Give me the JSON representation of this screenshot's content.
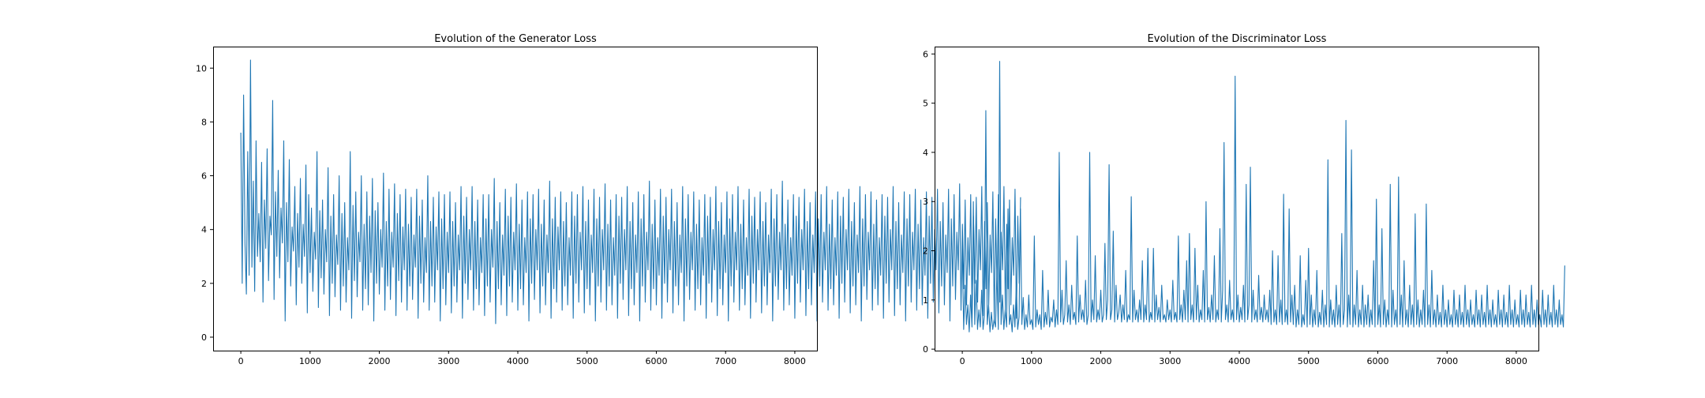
{
  "chart_data": [
    {
      "type": "line",
      "title": "Evolution of the Generator Loss",
      "xlabel": "",
      "ylabel": "",
      "xlim": [
        -400,
        8320
      ],
      "ylim": [
        -0.5,
        10.8
      ],
      "x_ticks": [
        0,
        1000,
        2000,
        3000,
        4000,
        5000,
        6000,
        7000,
        8000
      ],
      "x_tick_labels": [
        "0",
        "1000",
        "2000",
        "3000",
        "4000",
        "5000",
        "6000",
        "7000",
        "8000"
      ],
      "y_ticks": [
        0,
        2,
        4,
        6,
        8,
        10
      ],
      "y_tick_labels": [
        "0",
        "2",
        "4",
        "6",
        "8",
        "10"
      ],
      "grid": false,
      "legend": "none",
      "color": "#1f77b4",
      "series": [
        {
          "x_start": 0,
          "x_end": 7920,
          "step": 20,
          "values": [
            7.6,
            2.0,
            9.0,
            3.5,
            1.6,
            6.9,
            2.3,
            10.3,
            2.6,
            5.8,
            1.7,
            7.3,
            3.0,
            4.6,
            2.8,
            6.5,
            1.3,
            5.1,
            3.3,
            7.0,
            2.1,
            4.5,
            3.8,
            8.8,
            1.4,
            5.4,
            3.0,
            6.2,
            2.2,
            4.8,
            3.5,
            7.3,
            0.6,
            5.0,
            2.8,
            6.6,
            1.9,
            4.1,
            3.2,
            5.6,
            1.2,
            4.6,
            2.6,
            5.9,
            2.0,
            4.2,
            3.0,
            6.4,
            0.9,
            5.3,
            2.4,
            4.8,
            1.7,
            3.9,
            2.9,
            6.9,
            1.1,
            4.7,
            2.2,
            5.1,
            1.6,
            4.0,
            2.8,
            6.3,
            0.8,
            4.5,
            2.0,
            5.3,
            1.5,
            3.8,
            2.7,
            6.0,
            1.0,
            4.6,
            1.9,
            5.0,
            1.3,
            3.7,
            2.5,
            6.9,
            0.7,
            4.9,
            2.1,
            5.4,
            1.5,
            3.9,
            2.8,
            6.0,
            1.0,
            4.2,
            1.8,
            5.4,
            1.2,
            4.5,
            2.4,
            5.9,
            0.6,
            4.7,
            2.0,
            5.0,
            1.6,
            4.0,
            2.6,
            6.1,
            1.0,
            4.3,
            1.9,
            5.5,
            1.4,
            3.9,
            2.6,
            5.7,
            0.8,
            4.6,
            2.1,
            5.3,
            1.3,
            4.1,
            2.5,
            5.5,
            1.0,
            4.2,
            1.9,
            5.2,
            1.4,
            3.8,
            2.6,
            5.5,
            0.7,
            4.5,
            2.0,
            5.1,
            1.3,
            3.7,
            2.4,
            6.0,
            1.0,
            4.3,
            1.9,
            5.2,
            1.3,
            4.1,
            2.5,
            5.4,
            0.6,
            4.4,
            1.8,
            5.3,
            1.2,
            3.9,
            2.4,
            5.4,
            0.9,
            4.3,
            1.9,
            5.0,
            1.3,
            3.8,
            2.5,
            5.6,
            0.7,
            4.5,
            2.0,
            5.2,
            1.4,
            4.0,
            2.5,
            5.6,
            1.0,
            4.3,
            1.8,
            5.1,
            1.2,
            3.7,
            2.4,
            5.3,
            0.8,
            4.4,
            1.9,
            5.3,
            1.3,
            4.0,
            2.6,
            5.9,
            0.5,
            4.3,
            1.8,
            5.0,
            1.2,
            3.8,
            2.3,
            5.5,
            0.8,
            4.5,
            1.9,
            5.2,
            1.3,
            3.9,
            2.5,
            5.7,
            1.0,
            4.2,
            1.8,
            5.1,
            1.2,
            3.7,
            2.4,
            5.4,
            0.6,
            4.4,
            2.0,
            5.3,
            1.4,
            4.0,
            2.5,
            5.5,
            0.9,
            4.2,
            1.9,
            5.1,
            1.2,
            3.8,
            2.4,
            5.8,
            0.7,
            4.4,
            1.8,
            5.2,
            1.3,
            4.1,
            2.5,
            5.4,
            1.0,
            4.3,
            1.9,
            5.0,
            1.2,
            3.7,
            2.3,
            5.4,
            0.7,
            4.5,
            2.0,
            5.3,
            1.3,
            3.9,
            2.5,
            5.6,
            0.9,
            4.3,
            1.8,
            5.1,
            1.2,
            3.8,
            2.4,
            5.5,
            0.6,
            4.4,
            1.9,
            5.2,
            1.3,
            4.0,
            2.5,
            5.7,
            1.0,
            4.2,
            1.9,
            5.1,
            1.2,
            3.7,
            2.3,
            5.3,
            0.7,
            4.5,
            2.0,
            5.2,
            1.4,
            4.0,
            2.5,
            5.6,
            0.8,
            4.3,
            1.8,
            5.0,
            1.2,
            3.8,
            2.4,
            5.4,
            0.6,
            4.4,
            1.9,
            5.3,
            1.3,
            3.9,
            2.5,
            5.8,
            1.0,
            4.2,
            1.8,
            5.1,
            1.2,
            3.7,
            2.3,
            5.5,
            0.7,
            4.5,
            2.0,
            5.2,
            1.3,
            4.0,
            2.5,
            5.5,
            0.9,
            4.3,
            1.9,
            5.0,
            1.2,
            3.8,
            2.4,
            5.6,
            0.6,
            4.4,
            1.9,
            5.3,
            1.4,
            3.9,
            2.5,
            5.4,
            1.0,
            4.2,
            1.8,
            5.1,
            1.2,
            3.7,
            2.3,
            5.3,
            0.7,
            4.5,
            2.0,
            5.2,
            1.3,
            4.0,
            2.5,
            5.6,
            0.8,
            4.3,
            1.8,
            5.0,
            1.2,
            3.8,
            2.4,
            5.4,
            0.6,
            4.4,
            1.9,
            5.3,
            1.3,
            3.9,
            2.5,
            5.6,
            1.0,
            4.2,
            1.8,
            5.1,
            1.2,
            3.7,
            2.3,
            5.5,
            0.7,
            4.5,
            2.0,
            5.2,
            1.3,
            4.0,
            2.5,
            5.4,
            0.9,
            4.3,
            1.9,
            5.0,
            1.2,
            3.8,
            2.4,
            5.5,
            0.6,
            4.4,
            1.9,
            5.3,
            1.4,
            3.9,
            2.5,
            5.8,
            1.0,
            4.2,
            1.8,
            5.1,
            1.2,
            3.7,
            2.3,
            5.3,
            0.7,
            4.5,
            2.0,
            5.2,
            1.3,
            4.0,
            2.5,
            5.5,
            0.8,
            4.3,
            1.8,
            5.0,
            1.2,
            3.8,
            2.4,
            5.4,
            0.6,
            4.4,
            1.9,
            5.3,
            1.3,
            3.9,
            2.5,
            5.6,
            1.0,
            4.2,
            1.8,
            5.1,
            1.2,
            3.7,
            2.3,
            5.4,
            0.7,
            4.5,
            2.0,
            5.2,
            1.3,
            4.0,
            2.5,
            5.5,
            0.9,
            4.3,
            1.9,
            5.0,
            1.2,
            3.8,
            2.4,
            5.6,
            0.6,
            4.4,
            1.9,
            5.3,
            1.4,
            3.9,
            2.5,
            5.4,
            1.0,
            4.2,
            1.8,
            5.1,
            1.2,
            3.7,
            2.3,
            5.3,
            0.7,
            4.5,
            2.0,
            5.2,
            1.3,
            4.0,
            2.5,
            5.6,
            0.8,
            4.3,
            1.8,
            5.0,
            1.2,
            3.8,
            2.4,
            5.4,
            0.6,
            4.4,
            1.9,
            5.3,
            1.3,
            3.9,
            2.5,
            5.5,
            1.0,
            4.2,
            1.8,
            5.1,
            1.2,
            3.7,
            2.3,
            5.4,
            0.7,
            4.5,
            2.0,
            5.2,
            1.3,
            4.0,
            2.5,
            5.5,
            0.9,
            4.3,
            1.9,
            5.0,
            1.2,
            3.8,
            2.4,
            5.5,
            0.6,
            4.4,
            1.9,
            5.3,
            1.4,
            3.9,
            2.5,
            5.7,
            1.0,
            4.2,
            1.8,
            5.1,
            1.2,
            3.7,
            2.3,
            5.3,
            0.7,
            4.5,
            2.0,
            5.2,
            1.3,
            4.0,
            2.5,
            5.6,
            0.8,
            4.3,
            1.8,
            5.0,
            1.2,
            3.8,
            2.4,
            5.4,
            0.6,
            4.4,
            1.9,
            5.3,
            1.3,
            3.9,
            2.5,
            5.6,
            1.0,
            4.2,
            1.8,
            5.1,
            1.2,
            3.7,
            2.3,
            5.5,
            0.7,
            4.5,
            2.0,
            5.2
          ]
        }
      ]
    },
    {
      "type": "line",
      "title": "Evolution of the Discriminator Loss",
      "xlabel": "",
      "ylabel": "",
      "xlim": [
        -400,
        8320
      ],
      "ylim": [
        -0.03,
        6.15
      ],
      "x_ticks": [
        0,
        1000,
        2000,
        3000,
        4000,
        5000,
        6000,
        7000,
        8000
      ],
      "x_tick_labels": [
        "0",
        "1000",
        "2000",
        "3000",
        "4000",
        "5000",
        "6000",
        "7000",
        "8000"
      ],
      "y_ticks": [
        0,
        1,
        2,
        3,
        4,
        5,
        6
      ],
      "y_tick_labels": [
        "0",
        "1",
        "2",
        "3",
        "4",
        "5",
        "6"
      ],
      "grid": false,
      "legend": "none",
      "color": "#1f77b4",
      "series": [
        {
          "x_start": 0,
          "x_end": 7920,
          "step": 20,
          "values": [
            2.05,
            0.4,
            1.3,
            0.5,
            0.9,
            0.35,
            1.1,
            0.45,
            3.0,
            0.5,
            1.4,
            0.4,
            0.8,
            0.45,
            1.2,
            0.4,
            0.7,
            4.85,
            0.5,
            0.9,
            0.35,
            0.75,
            0.4,
            0.6,
            0.45,
            1.6,
            0.4,
            5.85,
            0.5,
            1.1,
            0.4,
            0.8,
            0.45,
            2.85,
            0.5,
            0.7,
            0.35,
            0.9,
            0.45,
            1.3,
            0.4,
            0.65,
            2.85,
            0.5,
            1.05,
            0.4,
            0.7,
            0.45,
            1.1,
            0.5,
            0.6,
            0.4,
            2.3,
            0.45,
            0.8,
            0.5,
            0.7,
            0.4,
            1.6,
            0.45,
            0.75,
            0.5,
            1.2,
            0.45,
            0.65,
            0.55,
            1.0,
            0.45,
            0.8,
            0.5,
            4.0,
            0.55,
            1.2,
            0.5,
            0.7,
            1.8,
            0.55,
            0.9,
            0.5,
            1.3,
            0.6,
            0.75,
            0.5,
            2.3,
            0.55,
            1.1,
            0.6,
            0.8,
            0.55,
            1.4,
            0.5,
            0.7,
            4.0,
            0.55,
            1.0,
            0.6,
            1.9,
            0.55,
            0.8,
            0.6,
            1.2,
            0.55,
            0.7,
            2.15,
            0.6,
            1.0,
            3.75,
            0.6,
            0.8,
            2.4,
            0.55,
            1.3,
            0.6,
            0.75,
            1.1,
            0.55,
            0.9,
            0.6,
            1.6,
            0.55,
            0.7,
            0.6,
            3.1,
            0.55,
            1.2,
            0.6,
            0.8,
            0.55,
            1.0,
            0.6,
            1.8,
            0.55,
            0.9,
            0.6,
            2.05,
            0.55,
            0.75,
            0.6,
            2.05,
            0.55,
            1.1,
            0.6,
            0.85,
            0.55,
            1.3,
            0.6,
            0.7,
            0.55,
            1.0,
            0.6,
            0.8,
            0.55,
            1.4,
            0.6,
            0.75,
            0.55,
            2.3,
            0.6,
            0.9,
            0.55,
            1.2,
            0.6,
            1.8,
            0.55,
            2.35,
            0.6,
            0.9,
            0.55,
            2.05,
            0.6,
            1.3,
            0.55,
            0.8,
            0.6,
            1.6,
            0.55,
            3.0,
            0.6,
            0.85,
            0.55,
            1.1,
            0.6,
            1.9,
            0.55,
            0.8,
            0.6,
            2.45,
            0.55,
            1.2,
            4.2,
            0.6,
            0.9,
            0.55,
            1.4,
            0.6,
            0.8,
            0.55,
            5.55,
            0.6,
            1.1,
            0.55,
            0.85,
            0.6,
            1.3,
            0.55,
            3.35,
            0.6,
            0.9,
            3.7,
            0.55,
            1.2,
            0.6,
            0.8,
            0.55,
            1.5,
            0.6,
            0.85,
            0.55,
            1.1,
            0.6,
            0.8,
            0.55,
            1.2,
            0.5,
            2.0,
            0.55,
            0.8,
            0.5,
            1.9,
            0.55,
            1.0,
            0.5,
            3.15,
            0.55,
            0.8,
            0.5,
            2.85,
            0.55,
            1.1,
            0.5,
            1.3,
            0.45,
            0.8,
            0.5,
            1.9,
            0.45,
            0.7,
            0.5,
            1.4,
            0.45,
            2.05,
            0.5,
            1.1,
            0.45,
            0.8,
            0.5,
            1.6,
            0.45,
            0.75,
            0.5,
            1.2,
            0.45,
            0.9,
            0.5,
            3.85,
            0.45,
            1.0,
            0.5,
            0.8,
            0.45,
            1.3,
            0.5,
            0.9,
            0.45,
            2.35,
            0.5,
            0.8,
            4.65,
            0.45,
            1.1,
            0.5,
            4.05,
            0.45,
            0.9,
            0.5,
            1.6,
            0.45,
            0.8,
            0.5,
            1.3,
            0.45,
            0.9,
            0.5,
            1.1,
            0.45,
            0.8,
            0.5,
            1.8,
            0.45,
            3.05,
            0.5,
            0.9,
            0.45,
            2.45,
            0.5,
            1.0,
            0.45,
            0.8,
            0.5,
            3.35,
            0.45,
            1.2,
            0.5,
            0.8,
            0.45,
            3.5,
            0.5,
            1.1,
            0.45,
            1.8,
            0.5,
            0.8,
            0.45,
            1.3,
            0.5,
            0.9,
            0.45,
            2.75,
            0.5,
            1.0,
            0.45,
            0.8,
            0.5,
            1.2,
            0.45,
            2.95,
            0.5,
            0.9,
            0.45,
            1.6,
            0.5,
            0.8,
            0.45,
            1.1,
            0.5,
            0.75,
            0.45,
            1.3,
            0.5,
            0.8,
            0.45,
            1.0,
            0.5,
            0.7,
            0.45,
            1.2,
            0.5,
            0.8,
            0.45,
            1.1,
            0.5,
            0.75,
            0.45,
            1.3,
            0.5,
            0.8,
            0.45,
            1.0,
            0.5,
            0.7,
            0.45,
            1.2,
            0.5,
            0.8,
            0.45,
            1.1,
            0.5,
            0.75,
            0.45,
            1.3,
            0.5,
            0.8,
            0.45,
            1.0,
            0.5,
            0.7,
            0.45,
            1.2,
            0.5,
            0.8,
            0.45,
            1.1,
            0.5,
            0.75,
            0.45,
            1.3,
            0.5,
            0.8,
            0.45,
            1.0,
            0.5,
            0.7,
            0.45,
            1.2,
            0.5,
            0.8,
            0.45,
            1.1,
            0.5,
            0.75,
            0.45,
            1.3,
            0.5,
            0.8,
            0.45,
            1.0,
            0.5,
            0.7,
            0.45,
            1.2,
            0.5,
            0.8,
            0.45,
            1.1,
            0.5,
            0.75,
            0.45,
            1.3,
            0.5,
            0.8,
            0.45,
            1.0,
            0.5,
            0.7,
            0.45,
            1.7
          ]
        }
      ]
    }
  ]
}
